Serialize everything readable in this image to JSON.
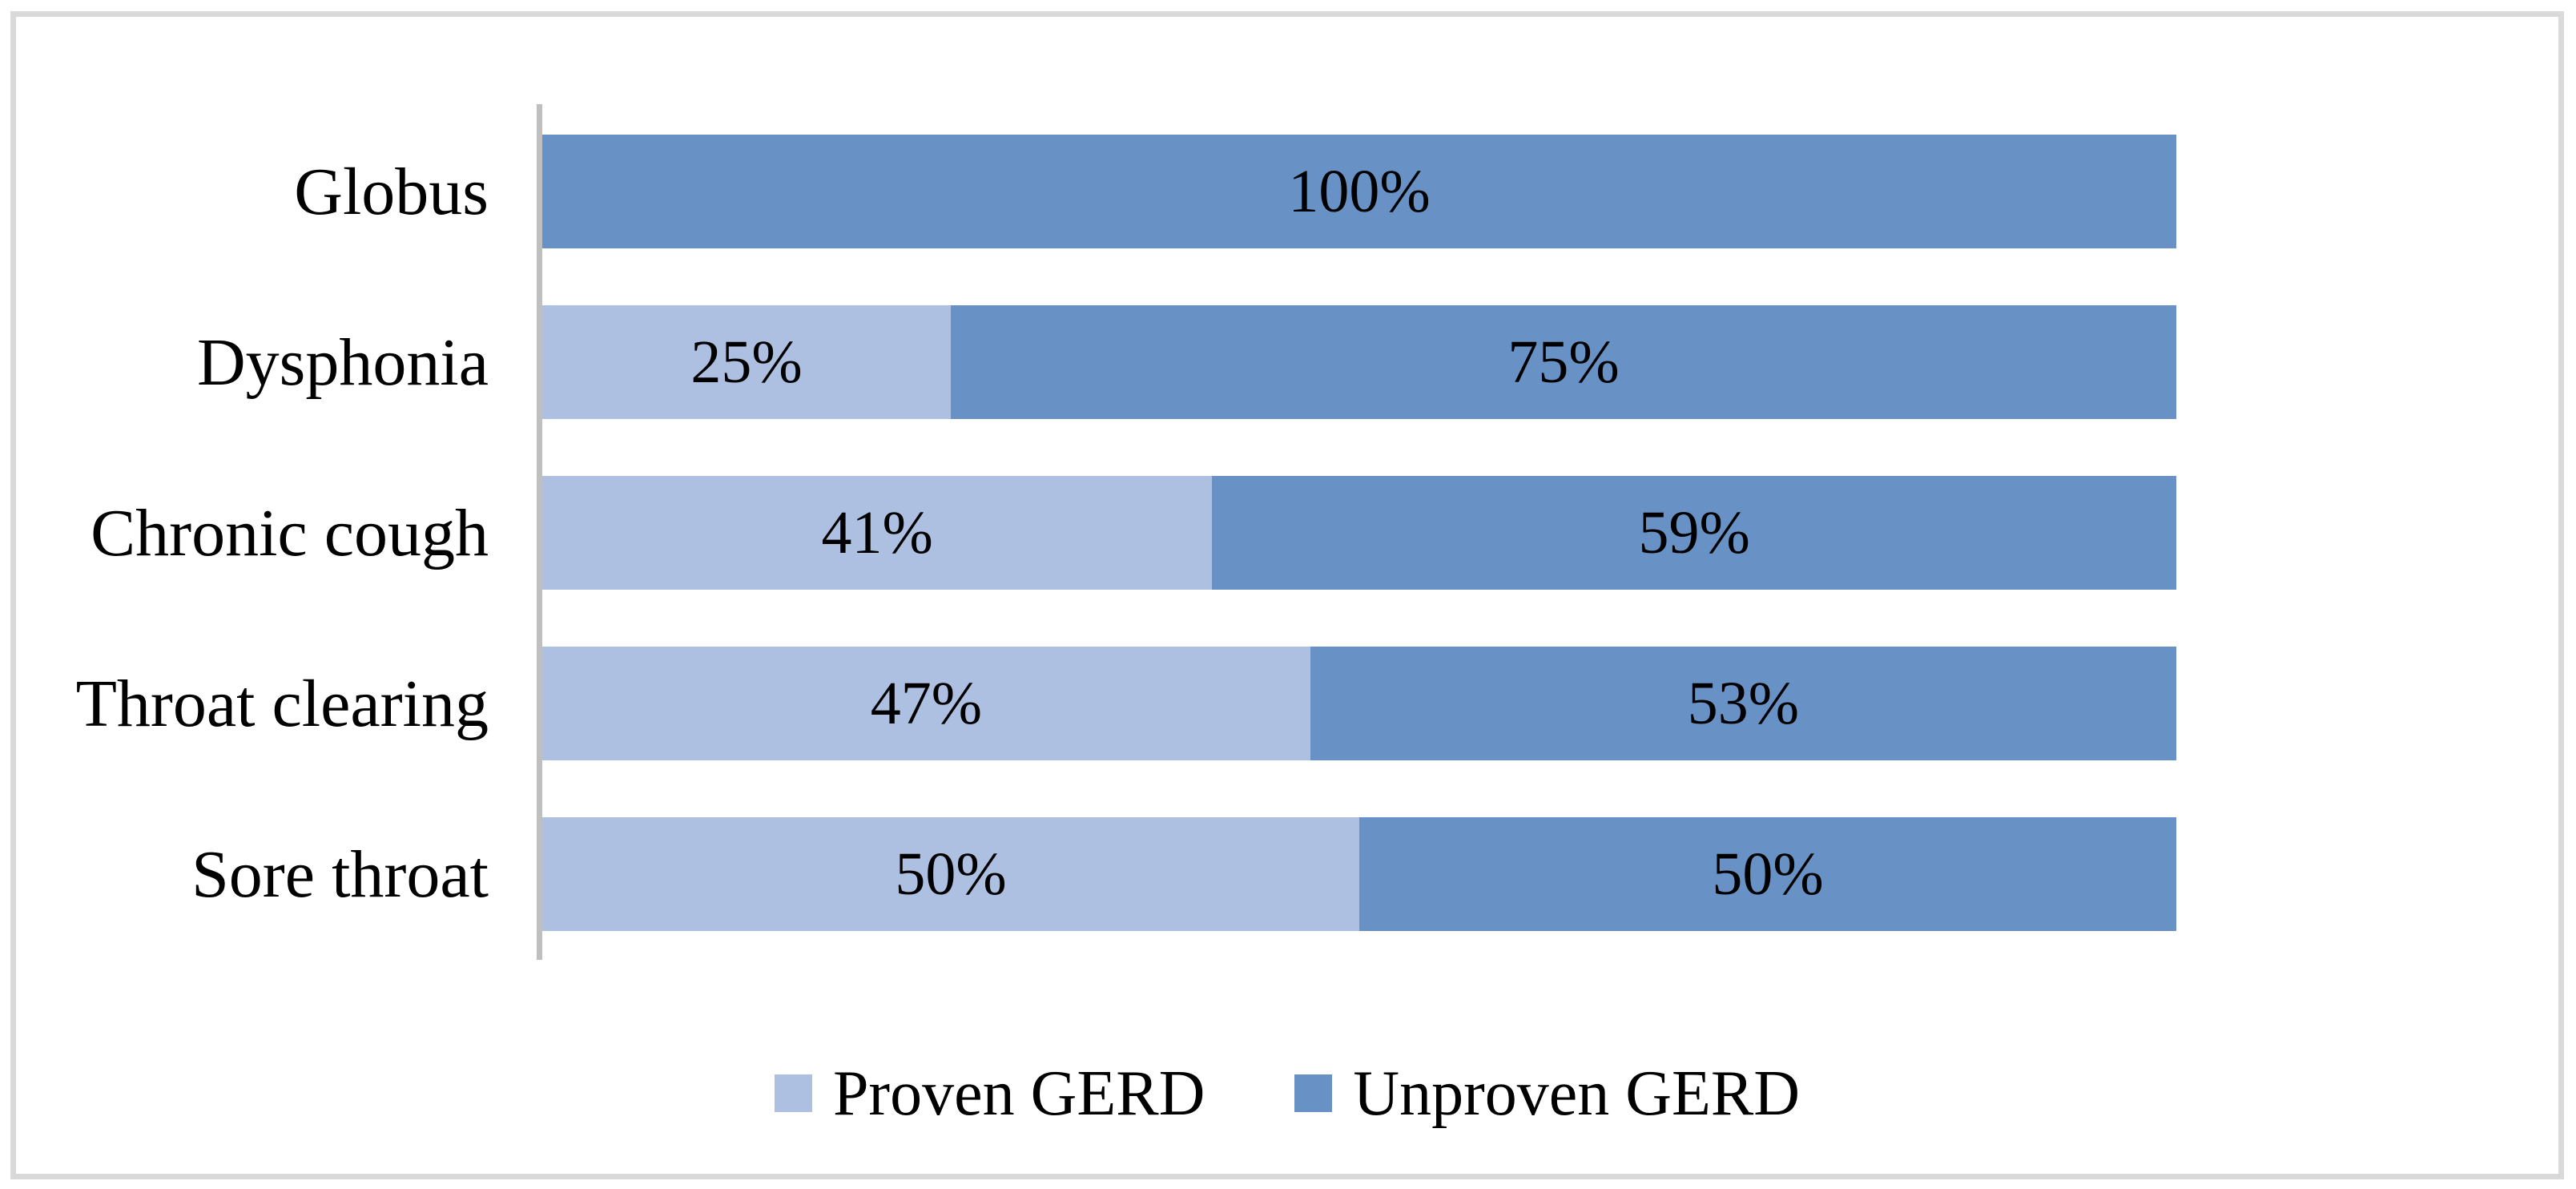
{
  "chart_data": {
    "type": "bar",
    "orientation": "horizontal",
    "stacked": true,
    "title": "",
    "xlabel": "",
    "ylabel": "",
    "unit": "%",
    "xlim": [
      0,
      100
    ],
    "grid": false,
    "data_labels": true,
    "legend_position": "bottom-center",
    "categories": [
      "Globus",
      "Dysphonia",
      "Chronic cough",
      "Throat clearing",
      "Sore throat"
    ],
    "series": [
      {
        "name": "Proven GERD",
        "color": "#adc0e2",
        "values": [
          0,
          25,
          41,
          47,
          50
        ],
        "labels": [
          "",
          "25%",
          "41%",
          "47%",
          "50%"
        ]
      },
      {
        "name": "Unproven GERD",
        "color": "#6892c6",
        "values": [
          100,
          75,
          59,
          53,
          50
        ],
        "labels": [
          "100%",
          "75%",
          "59%",
          "53%",
          "50%"
        ]
      }
    ],
    "colors": {
      "axis_line": "#bfbfbf",
      "frame_border": "#d9d9d9",
      "label_text": "#000000",
      "background": "#ffffff"
    }
  }
}
